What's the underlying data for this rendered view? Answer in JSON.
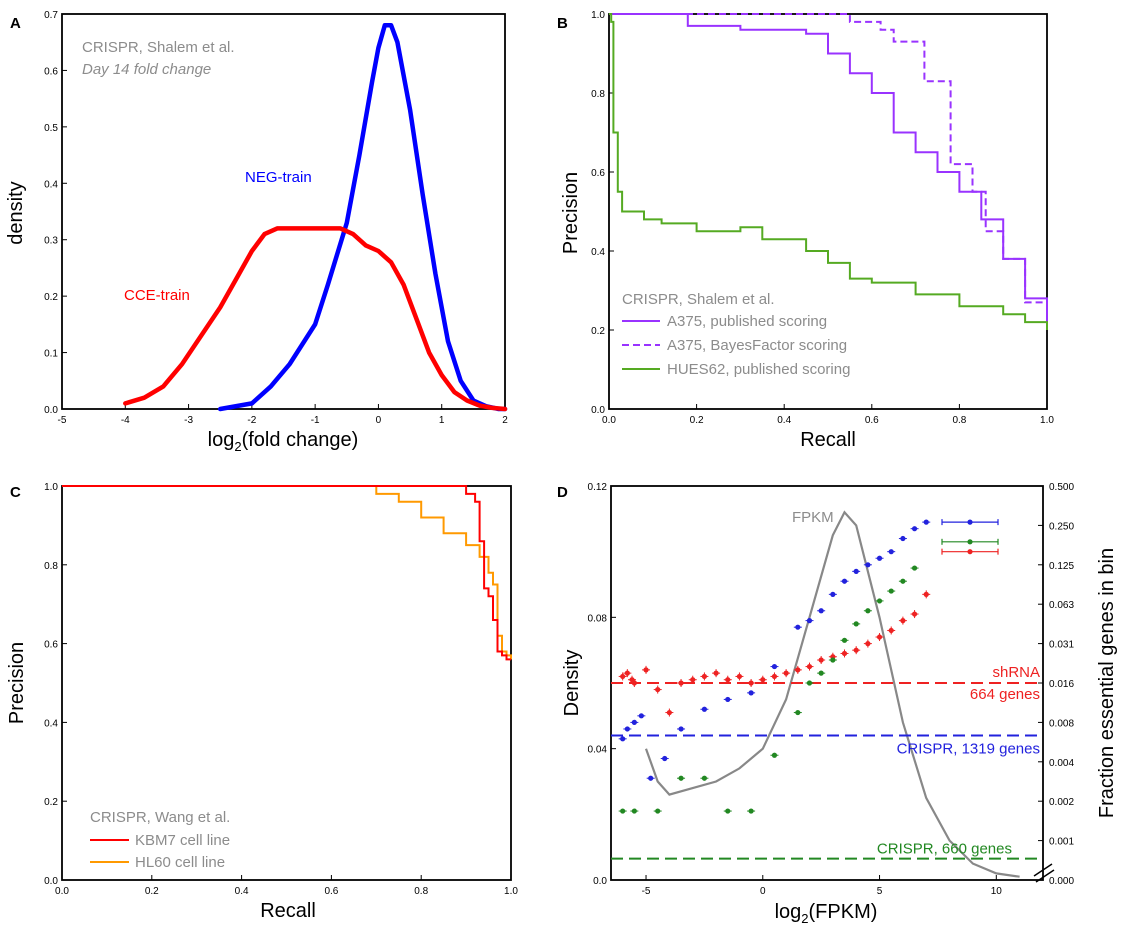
{
  "chart_data": [
    {
      "panel": "A",
      "type": "line",
      "annotation_line1": "CRISPR, Shalem et al.",
      "annotation_line2": "Day 14 fold change",
      "xlabel": "log2(fold change)",
      "xlabel_prefix": "log",
      "xlabel_sub": "2",
      "xlabel_suffix": "(fold change)",
      "ylabel": "density",
      "xlim": [
        -5,
        2
      ],
      "ylim": [
        0,
        0.7
      ],
      "xticks": [
        -5,
        -4,
        -3,
        -2,
        -1,
        0,
        1,
        2
      ],
      "yticks": [
        0.0,
        0.1,
        0.2,
        0.3,
        0.4,
        0.5,
        0.6,
        0.7
      ],
      "series": [
        {
          "name": "NEG-train",
          "color": "#0000ff",
          "x": [
            -2.5,
            -2.0,
            -1.7,
            -1.4,
            -1.0,
            -0.8,
            -0.5,
            -0.3,
            -0.1,
            0.0,
            0.1,
            0.2,
            0.3,
            0.5,
            0.7,
            0.9,
            1.1,
            1.3,
            1.5,
            1.7,
            1.9,
            2.0
          ],
          "y": [
            0.0,
            0.01,
            0.04,
            0.08,
            0.15,
            0.22,
            0.33,
            0.45,
            0.58,
            0.64,
            0.68,
            0.68,
            0.65,
            0.53,
            0.38,
            0.24,
            0.12,
            0.05,
            0.015,
            0.005,
            0.0,
            0.0
          ]
        },
        {
          "name": "CCE-train",
          "color": "#ff0000",
          "x": [
            -4.0,
            -3.7,
            -3.4,
            -3.1,
            -2.8,
            -2.5,
            -2.2,
            -2.0,
            -1.8,
            -1.6,
            -1.4,
            -1.2,
            -1.0,
            -0.8,
            -0.6,
            -0.4,
            -0.2,
            0.0,
            0.2,
            0.4,
            0.6,
            0.8,
            1.0,
            1.2,
            1.4,
            1.6,
            1.8,
            2.0
          ],
          "y": [
            0.01,
            0.02,
            0.04,
            0.08,
            0.13,
            0.18,
            0.24,
            0.28,
            0.31,
            0.32,
            0.32,
            0.32,
            0.32,
            0.32,
            0.32,
            0.31,
            0.29,
            0.28,
            0.26,
            0.22,
            0.16,
            0.1,
            0.06,
            0.03,
            0.015,
            0.006,
            0.002,
            0.0
          ]
        }
      ]
    },
    {
      "panel": "B",
      "type": "line",
      "xlabel": "Recall",
      "ylabel": "Precision",
      "xlim": [
        0,
        1
      ],
      "ylim": [
        0,
        1
      ],
      "xticks": [
        0.0,
        0.2,
        0.4,
        0.6,
        0.8,
        1.0
      ],
      "yticks": [
        0.0,
        0.2,
        0.4,
        0.6,
        0.8,
        1.0
      ],
      "legend_title": "CRISPR, Shalem et al.",
      "series": [
        {
          "name": "A375, published scoring",
          "color": "#9933ff",
          "dash": false,
          "x": [
            0.0,
            0.17,
            0.18,
            0.3,
            0.45,
            0.5,
            0.55,
            0.6,
            0.65,
            0.7,
            0.75,
            0.8,
            0.85,
            0.9,
            0.95,
            1.0
          ],
          "y": [
            1.0,
            1.0,
            0.97,
            0.96,
            0.95,
            0.9,
            0.85,
            0.8,
            0.7,
            0.65,
            0.6,
            0.55,
            0.48,
            0.38,
            0.28,
            0.22
          ]
        },
        {
          "name": "A375, BayesFactor scoring",
          "color": "#9933ff",
          "dash": true,
          "x": [
            0.0,
            0.45,
            0.55,
            0.62,
            0.65,
            0.7,
            0.72,
            0.78,
            0.83,
            0.86,
            0.9,
            0.95,
            1.0
          ],
          "y": [
            1.0,
            1.0,
            0.98,
            0.96,
            0.93,
            0.93,
            0.83,
            0.62,
            0.55,
            0.45,
            0.38,
            0.27,
            0.22
          ]
        },
        {
          "name": "HUES62, published scoring",
          "color": "#55aa22",
          "dash": false,
          "x": [
            0.0,
            0.005,
            0.01,
            0.02,
            0.03,
            0.05,
            0.08,
            0.12,
            0.2,
            0.3,
            0.35,
            0.45,
            0.5,
            0.55,
            0.6,
            0.7,
            0.8,
            0.9,
            0.95,
            1.0
          ],
          "y": [
            1.0,
            0.98,
            0.7,
            0.55,
            0.5,
            0.5,
            0.48,
            0.47,
            0.45,
            0.46,
            0.43,
            0.4,
            0.37,
            0.33,
            0.32,
            0.29,
            0.26,
            0.24,
            0.22,
            0.2
          ]
        }
      ]
    },
    {
      "panel": "C",
      "type": "line",
      "xlabel": "Recall",
      "ylabel": "Precision",
      "xlim": [
        0,
        1
      ],
      "ylim": [
        0,
        1
      ],
      "xticks": [
        0.0,
        0.2,
        0.4,
        0.6,
        0.8,
        1.0
      ],
      "yticks": [
        0.0,
        0.2,
        0.4,
        0.6,
        0.8,
        1.0
      ],
      "legend_title": "CRISPR, Wang et al.",
      "series": [
        {
          "name": "KBM7 cell line",
          "color": "#ff0000",
          "x": [
            0.0,
            0.88,
            0.9,
            0.92,
            0.93,
            0.94,
            0.95,
            0.96,
            0.97,
            0.98,
            0.99,
            1.0
          ],
          "y": [
            1.0,
            1.0,
            0.98,
            0.96,
            0.86,
            0.74,
            0.72,
            0.66,
            0.58,
            0.57,
            0.56,
            0.56
          ]
        },
        {
          "name": "HL60 cell line",
          "color": "#ff9900",
          "x": [
            0.0,
            0.66,
            0.7,
            0.75,
            0.8,
            0.85,
            0.9,
            0.93,
            0.95,
            0.96,
            0.97,
            0.98,
            0.99,
            1.0
          ],
          "y": [
            1.0,
            1.0,
            0.98,
            0.96,
            0.92,
            0.88,
            0.85,
            0.82,
            0.78,
            0.75,
            0.62,
            0.58,
            0.57,
            0.56
          ]
        }
      ]
    },
    {
      "panel": "D",
      "type": "scatter",
      "xlabel": "log2(FPKM)",
      "xlabel_prefix": "log",
      "xlabel_sub": "2",
      "xlabel_suffix": "(FPKM)",
      "ylabel": "Density",
      "y2label": "Fraction essential genes in bin",
      "xlim": [
        -6.5,
        12
      ],
      "ylim": [
        0,
        0.12
      ],
      "xticks": [
        -5,
        0,
        5,
        10
      ],
      "yticks": [
        0.0,
        0.04,
        0.08,
        0.12
      ],
      "yticks_labels": [
        "0.0",
        "0.04",
        "0.08",
        "0.12"
      ],
      "y2ticks": [
        "0.000",
        "0.001",
        "0.002",
        "0.004",
        "0.008",
        "0.016",
        "0.031",
        "0.063",
        "0.125",
        "0.250",
        "0.500"
      ],
      "fpkm_label": "FPKM",
      "fpkm_curve": {
        "name": "FPKM",
        "color": "#888888",
        "x": [
          -5,
          -4.5,
          -4,
          -3,
          -2,
          -1,
          0,
          1,
          2,
          3,
          3.5,
          4,
          5,
          6,
          7,
          8,
          9,
          10,
          11
        ],
        "y": [
          0.04,
          0.03,
          0.026,
          0.028,
          0.03,
          0.034,
          0.04,
          0.055,
          0.08,
          0.105,
          0.112,
          0.108,
          0.08,
          0.048,
          0.025,
          0.012,
          0.005,
          0.002,
          0.001
        ]
      },
      "hlines": [
        {
          "label1": "shRNA",
          "label2": "664 genes",
          "y": 0.06,
          "color": "#ee2222"
        },
        {
          "label1": "CRISPR, 1319 genes",
          "label2": "",
          "y": 0.044,
          "color": "#2222dd"
        },
        {
          "label1": "CRISPR, 660 genes",
          "label2": "",
          "y": 0.0065,
          "color": "#228822"
        }
      ],
      "series": [
        {
          "name": "shRNA",
          "color": "#ee2222",
          "x": [
            -6.0,
            -5.8,
            -5.6,
            -5.5,
            -5.0,
            -4.5,
            -4.0,
            -3.5,
            -3.0,
            -2.5,
            -2.0,
            -1.5,
            -1.0,
            -0.5,
            0.0,
            0.5,
            1.0,
            1.5,
            2.0,
            2.5,
            3.0,
            3.5,
            4.0,
            4.5,
            5.0,
            5.5,
            6.0,
            6.5,
            7.0
          ],
          "y": [
            0.062,
            0.063,
            0.061,
            0.06,
            0.064,
            0.058,
            0.051,
            0.06,
            0.061,
            0.062,
            0.063,
            0.061,
            0.062,
            0.06,
            0.061,
            0.062,
            0.063,
            0.064,
            0.065,
            0.067,
            0.068,
            0.069,
            0.07,
            0.072,
            0.074,
            0.076,
            0.079,
            0.081,
            0.087
          ]
        },
        {
          "name": "CRISPR, 1319 genes",
          "color": "#2222dd",
          "x": [
            -6.0,
            -5.8,
            -5.5,
            -5.2,
            -4.8,
            -4.2,
            -3.5,
            -2.5,
            -1.5,
            -0.5,
            0.5,
            1.5,
            2.0,
            2.5,
            3.0,
            3.5,
            4.0,
            4.5,
            5.0,
            5.5,
            6.0,
            6.5,
            7.0
          ],
          "y": [
            0.043,
            0.046,
            0.048,
            0.05,
            0.031,
            0.037,
            0.046,
            0.052,
            0.055,
            0.057,
            0.065,
            0.077,
            0.079,
            0.082,
            0.087,
            0.091,
            0.094,
            0.096,
            0.098,
            0.1,
            0.104,
            0.107,
            0.109
          ]
        },
        {
          "name": "CRISPR, 660 genes",
          "color": "#228822",
          "x": [
            -6.0,
            -5.5,
            -4.5,
            -3.5,
            -2.5,
            -1.5,
            -0.5,
            0.5,
            1.5,
            2.0,
            2.5,
            3.0,
            3.5,
            4.0,
            4.5,
            5.0,
            5.5,
            6.0,
            6.5
          ],
          "y": [
            0.021,
            0.021,
            0.021,
            0.031,
            0.031,
            0.021,
            0.021,
            0.038,
            0.051,
            0.06,
            0.063,
            0.067,
            0.073,
            0.078,
            0.082,
            0.085,
            0.088,
            0.091,
            0.095
          ]
        }
      ],
      "right_side_markers": [
        {
          "color": "#2222dd",
          "y": 0.109
        },
        {
          "color": "#228822",
          "y": 0.103
        },
        {
          "color": "#ee2222",
          "y": 0.1
        }
      ]
    }
  ]
}
